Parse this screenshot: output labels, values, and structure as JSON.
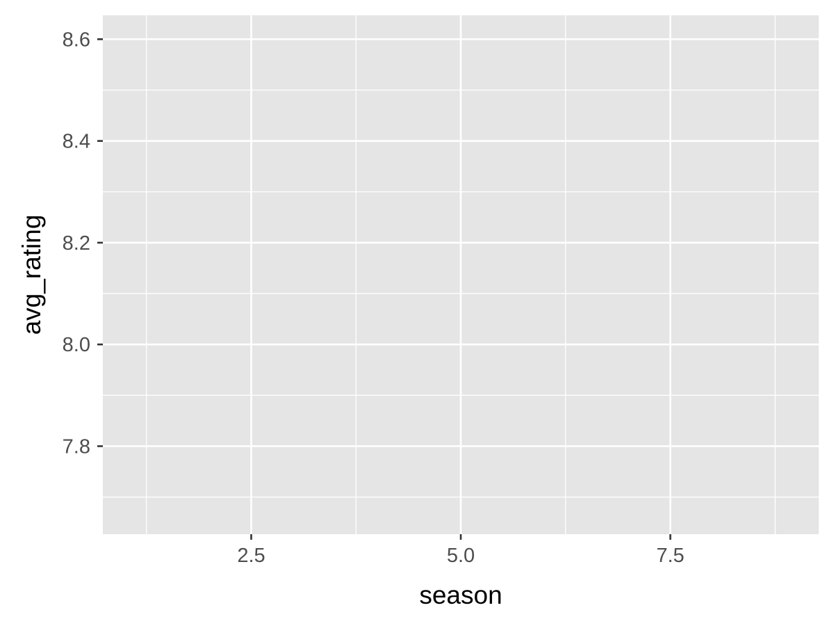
{
  "chart_data": {
    "type": "scatter",
    "title": "",
    "xlabel": "season",
    "ylabel": "avg_rating",
    "xlim": [
      0.73,
      9.27
    ],
    "ylim": [
      7.627,
      8.647
    ],
    "x_ticks": [
      2.5,
      5.0,
      7.5
    ],
    "x_tick_labels": [
      "2.5",
      "5.0",
      "7.5"
    ],
    "x_minor_ticks": [
      1.25,
      3.75,
      6.25,
      8.75
    ],
    "y_ticks": [
      7.8,
      8.0,
      8.2,
      8.4,
      8.6
    ],
    "y_tick_labels": [
      "7.8",
      "8.0",
      "8.2",
      "8.4",
      "8.6"
    ],
    "y_minor_ticks": [
      7.7,
      7.9,
      8.1,
      8.3,
      8.5
    ],
    "series": [],
    "grid": true,
    "legend": "none",
    "colors": {
      "panel_background": "#e5e5e5",
      "grid": "#ffffff",
      "tick_text": "#4d4d4d",
      "tick_mark": "#333333",
      "axis_title": "#000000"
    }
  }
}
